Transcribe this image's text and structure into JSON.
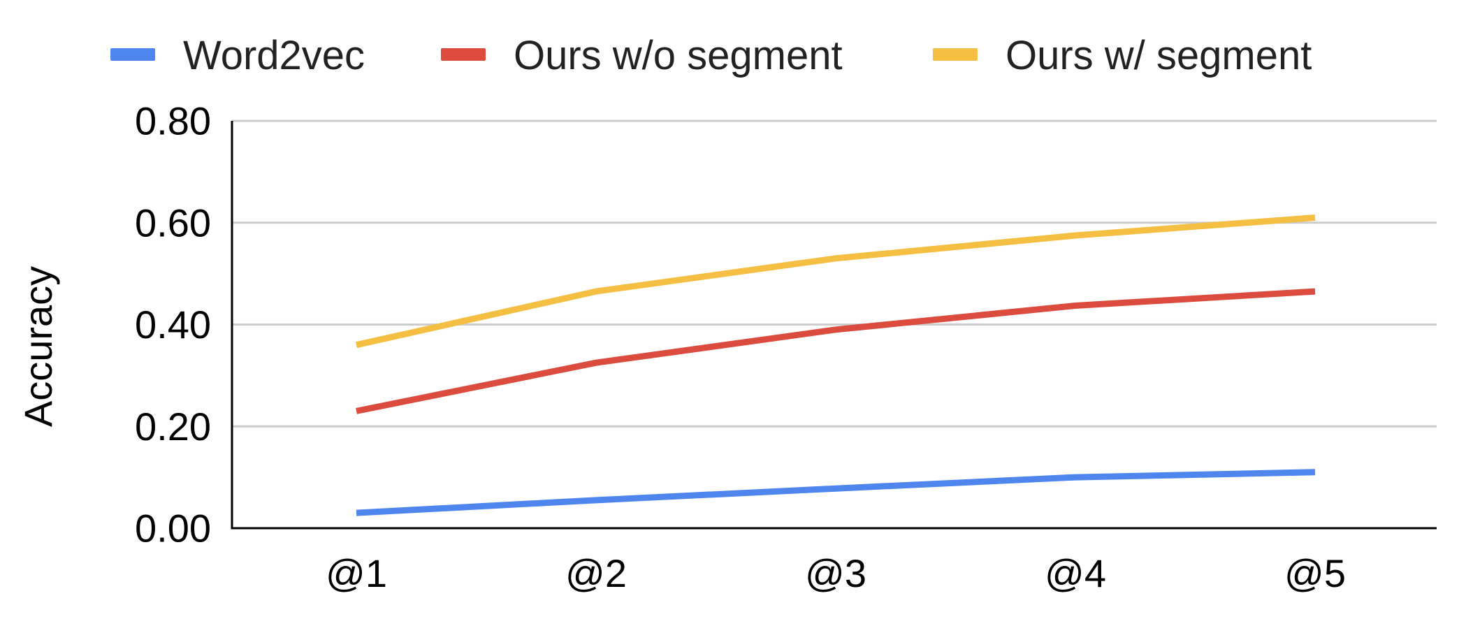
{
  "chart_data": {
    "type": "line",
    "title": "",
    "xlabel": "",
    "ylabel": "Accuracy",
    "categories": [
      "@1",
      "@2",
      "@3",
      "@4",
      "@5"
    ],
    "ylim": [
      0,
      0.8
    ],
    "yticks": [
      "0.80",
      "0.60",
      "0.40",
      "0.20",
      "0.00"
    ],
    "ytick_values": [
      0.8,
      0.6,
      0.4,
      0.2,
      0.0
    ],
    "grid": true,
    "legend_position": "top",
    "series": [
      {
        "name": "Word2vec",
        "color": "#4e86ed",
        "values": [
          0.03,
          0.055,
          0.078,
          0.1,
          0.11
        ]
      },
      {
        "name": "Ours w/o segment",
        "color": "#db4b3e",
        "values": [
          0.23,
          0.325,
          0.39,
          0.437,
          0.465
        ]
      },
      {
        "name": "Ours w/ segment",
        "color": "#f4bf42",
        "values": [
          0.36,
          0.465,
          0.53,
          0.575,
          0.61
        ]
      }
    ]
  }
}
